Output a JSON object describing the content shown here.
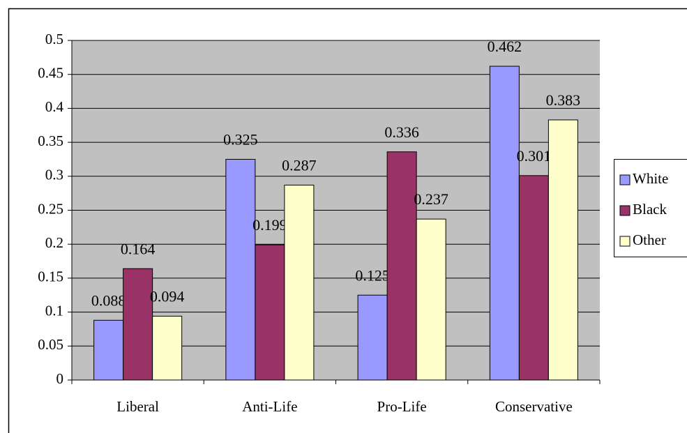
{
  "chart_data": {
    "type": "bar",
    "categories": [
      "Liberal",
      "Anti-Life",
      "Pro-Life",
      "Conservative"
    ],
    "series": [
      {
        "name": "White",
        "color": "#9999ff",
        "values": [
          0.088,
          0.325,
          0.125,
          0.462
        ]
      },
      {
        "name": "Black",
        "color": "#993366",
        "values": [
          0.164,
          0.199,
          0.336,
          0.301
        ]
      },
      {
        "name": "Other",
        "color": "#ffffcc",
        "values": [
          0.094,
          0.287,
          0.237,
          0.383
        ]
      }
    ],
    "ylim": [
      0,
      0.5
    ],
    "yticks": [
      0,
      0.05,
      0.1,
      0.15,
      0.2,
      0.25,
      0.3,
      0.35,
      0.4,
      0.45,
      0.5
    ],
    "grid": true,
    "legend": "right",
    "plot_background": "#c0c0c0"
  }
}
